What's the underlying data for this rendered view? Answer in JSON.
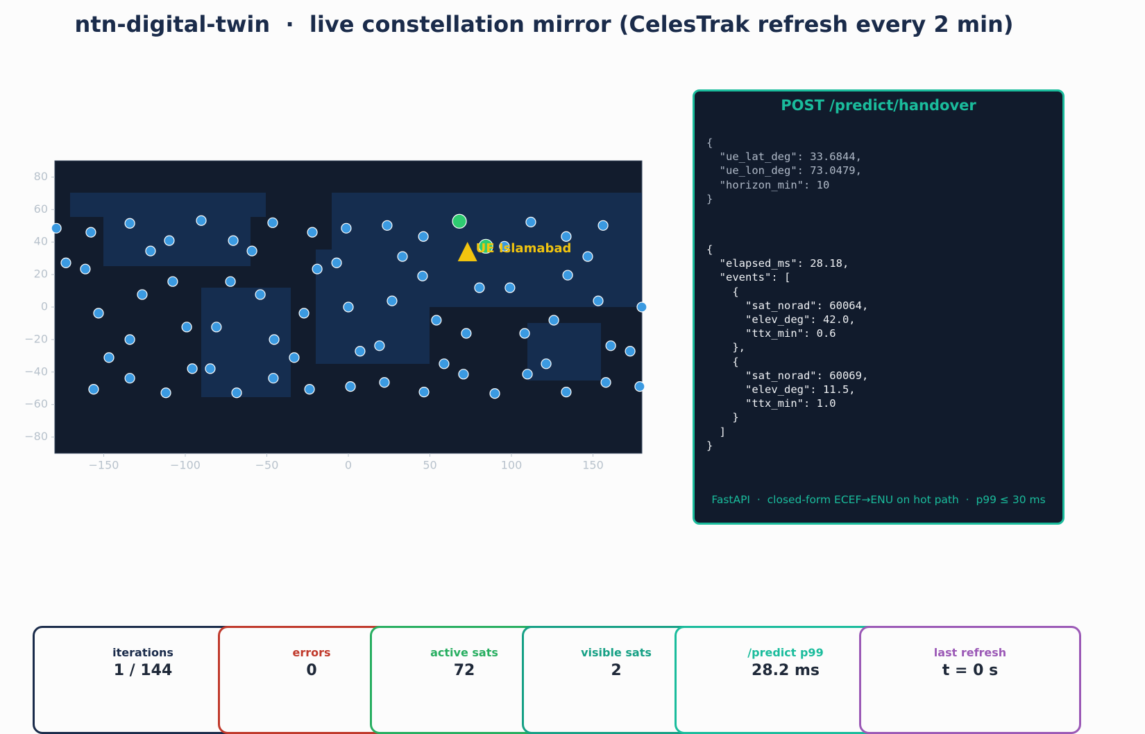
{
  "chart_data": {
    "type": "scatter",
    "xlim": [
      -180,
      180
    ],
    "ylim": [
      -90,
      90
    ],
    "xticks": [
      {
        "value": -150,
        "label": "−150"
      },
      {
        "value": -100,
        "label": "−100"
      },
      {
        "value": -50,
        "label": "−50"
      },
      0,
      50,
      100,
      150
    ],
    "yticks": [
      {
        "value": -80,
        "label": "−80"
      },
      {
        "value": -60,
        "label": "−60"
      },
      {
        "value": -40,
        "label": "−40"
      },
      {
        "value": -20,
        "label": "−20"
      },
      0,
      20,
      40,
      60,
      80
    ],
    "series": [
      {
        "color": "#3b9ae1",
        "x": [
          -179.1,
          -173.2,
          -157.9,
          -161.3,
          -153.2,
          -134,
          -121.3,
          -109.8,
          -126.4,
          -107.7,
          -90.2,
          -70.6,
          -59.1,
          -72.3,
          -54,
          -46.4,
          -22.1,
          -19.1,
          -7.2,
          -1.3,
          0,
          23.8,
          33.2,
          26.8,
          46,
          45.5,
          54,
          95.7,
          80.4,
          99.1,
          111.9,
          133.6,
          134.5,
          146.8,
          156.2,
          153.2,
          180,
          -99.1,
          -80.9,
          -134,
          -146.8,
          -45.5,
          -33.2,
          -27.2,
          -95.7,
          -84.7,
          -156.2,
          -134,
          -111.9,
          -68.5,
          -46,
          -23.8,
          1.3,
          7.2,
          19.1,
          22.1,
          46.4,
          58.7,
          70.6,
          72.3,
          89.8,
          108.1,
          109.8,
          121.3,
          126,
          133.6,
          157.9,
          160.9,
          172.8,
          178.7
        ],
        "values": [
          48.5,
          27.2,
          46,
          23.4,
          -3.8,
          51.5,
          34.5,
          40.9,
          7.7,
          15.7,
          53.2,
          40.9,
          34.5,
          15.7,
          7.7,
          51.9,
          46,
          23.4,
          27.2,
          48.5,
          0,
          50.2,
          31.1,
          3.8,
          43.4,
          19.1,
          -8.1,
          37.4,
          11.9,
          11.9,
          52.3,
          43.4,
          19.6,
          31.1,
          50.2,
          3.8,
          0,
          -12.3,
          -12.3,
          -20,
          -31.1,
          -20,
          -31.1,
          -3.8,
          -37.9,
          -37.9,
          -50.6,
          -43.8,
          -52.8,
          -52.8,
          -43.8,
          -50.6,
          -48.9,
          -27.2,
          -23.8,
          -46.4,
          -52.3,
          -34.9,
          -41.3,
          -16.2,
          -53.2,
          -16.2,
          -41.3,
          -34.9,
          -8.1,
          -52.3,
          -46.4,
          -23.8,
          -27.2,
          -48.9
        ]
      },
      {
        "color": "#2ecc71",
        "x": [
          68.1,
          84.3
        ],
        "values": [
          52.8,
          37.4
        ]
      }
    ],
    "annotation": {
      "text": "UE Islamabad",
      "x": 73.0479,
      "y": 33.6844,
      "color": "#f1c40f"
    }
  },
  "header": {
    "title": "ntn-digital-twin  ·  live constellation mirror (CelesTrak refresh every 2 min)"
  },
  "panel": {
    "title": "POST /predict/handover",
    "request": "{\n  \"ue_lat_deg\": 33.6844,\n  \"ue_lon_deg\": 73.0479,\n  \"horizon_min\": 10\n}",
    "response": "{\n  \"elapsed_ms\": 28.18,\n  \"events\": [\n    {\n      \"sat_norad\": 60064,\n      \"elev_deg\": 42.0,\n      \"ttx_min\": 0.6\n    },\n    {\n      \"sat_norad\": 60069,\n      \"elev_deg\": 11.5,\n      \"ttx_min\": 1.0\n    }\n  ]\n}",
    "footer": "FastAPI  ·  closed-form ECEF→ENU on hot path  ·  p99 ≤ 30 ms"
  },
  "cards": [
    {
      "label": "iterations",
      "value": "1 / 144",
      "color": "#1a2b4a"
    },
    {
      "label": "errors",
      "value": "0",
      "color": "#c0392b"
    },
    {
      "label": "active sats",
      "value": "72",
      "color": "#27ae60"
    },
    {
      "label": "visible sats",
      "value": "2",
      "color": "#16a085"
    },
    {
      "label": "/predict p99",
      "value": "28.2 ms",
      "color": "#1abc9c"
    },
    {
      "label": "last refresh",
      "value": "t = 0 s",
      "color": "#9b59b6"
    }
  ]
}
